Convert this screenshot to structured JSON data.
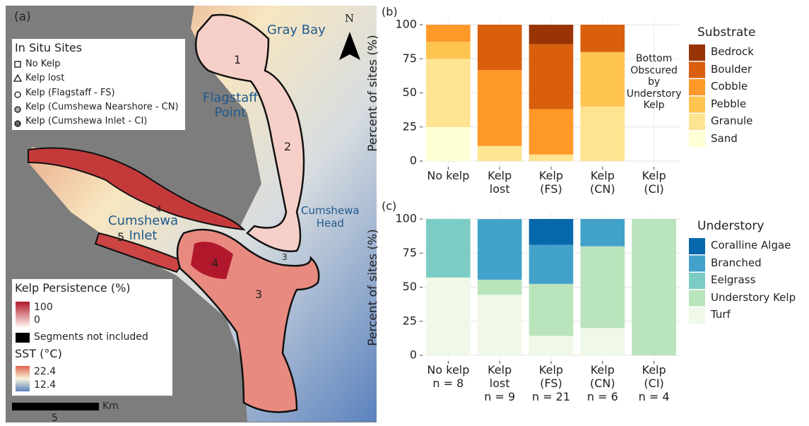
{
  "map": {
    "panel_label": "(a)",
    "north": "N",
    "places": [
      "Gray Bay",
      "Flagstaff\nPoint",
      "Cumshewa\nInlet",
      "Cumshewa\nHead"
    ],
    "region_numbers": [
      "1",
      "2",
      "4",
      "3",
      "5",
      "4",
      "3"
    ],
    "sites_legend": {
      "title": "In Situ Sites",
      "items": [
        "No Kelp",
        "Kelp lost",
        "Kelp (Flagstaff - FS)",
        "Kelp (Cumshewa Nearshore - CN)",
        "Kelp (Cumshewa Inlet - CI)"
      ]
    },
    "persistence_legend": {
      "title": "Kelp Persistence (%)",
      "labels": [
        "100",
        "0"
      ],
      "excluded": "Segments not included"
    },
    "sst_legend": {
      "title": "SST (°C)",
      "labels": [
        "22.4",
        "12.4"
      ]
    },
    "scale_bar": {
      "unit": "Km",
      "label": "5"
    }
  },
  "chart_data": [
    {
      "type": "stacked_bar",
      "panel_label": "(b)",
      "y_label": "Percent of sites (%)",
      "legend_title": "Substrate",
      "categories": [
        "No kelp",
        "Kelp\nlost",
        "Kelp\n(FS)",
        "Kelp\n(CN)",
        "Kelp\n(CI)"
      ],
      "annotation": "Bottom\nObscured\nby\nUnderstory\nKelp",
      "ylim": [
        0,
        100
      ],
      "yticks": [
        0,
        25,
        50,
        75,
        100
      ],
      "grid": true,
      "series": [
        {
          "name": "Sand",
          "color": "#ffffd4",
          "values": [
            25,
            0,
            0,
            0,
            null
          ]
        },
        {
          "name": "Granule",
          "color": "#fee391",
          "values": [
            50,
            11.1,
            4.8,
            40,
            null
          ]
        },
        {
          "name": "Pebble",
          "color": "#fec44f",
          "values": [
            12.5,
            0,
            0,
            40,
            null
          ]
        },
        {
          "name": "Cobble",
          "color": "#fe9929",
          "values": [
            12.5,
            55.6,
            33.3,
            0,
            null
          ]
        },
        {
          "name": "Boulder",
          "color": "#d95f0e",
          "values": [
            0,
            33.3,
            47.6,
            20,
            null
          ]
        },
        {
          "name": "Bedrock",
          "color": "#993404",
          "values": [
            0,
            0,
            14.3,
            0,
            null
          ]
        }
      ]
    },
    {
      "type": "stacked_bar",
      "panel_label": "(c)",
      "y_label": "Percent of sites (%)",
      "legend_title": "Understory",
      "categories": [
        "No kelp\nn = 8",
        "Kelp\nlost\nn = 9",
        "Kelp\n(FS)\nn = 21",
        "Kelp\n(CN)\nn = 6",
        "Kelp\n(CI)\nn = 4"
      ],
      "ylim": [
        0,
        100
      ],
      "yticks": [
        0,
        25,
        50,
        75,
        100
      ],
      "grid": true,
      "series": [
        {
          "name": "Turf",
          "color": "#f0f9e8",
          "values": [
            57.1,
            44.4,
            14.3,
            20,
            0
          ]
        },
        {
          "name": "Understory Kelp",
          "color": "#bae4bc",
          "values": [
            0,
            11.1,
            38.1,
            60,
            100
          ]
        },
        {
          "name": "Eelgrass",
          "color": "#7bccc4",
          "values": [
            42.9,
            0,
            0,
            0,
            0
          ]
        },
        {
          "name": "Branched",
          "color": "#43a2ca",
          "values": [
            0,
            44.4,
            28.6,
            20,
            0
          ]
        },
        {
          "name": "Coralline Algae",
          "color": "#0868ac",
          "values": [
            0,
            0,
            19,
            0,
            0
          ]
        }
      ]
    }
  ]
}
